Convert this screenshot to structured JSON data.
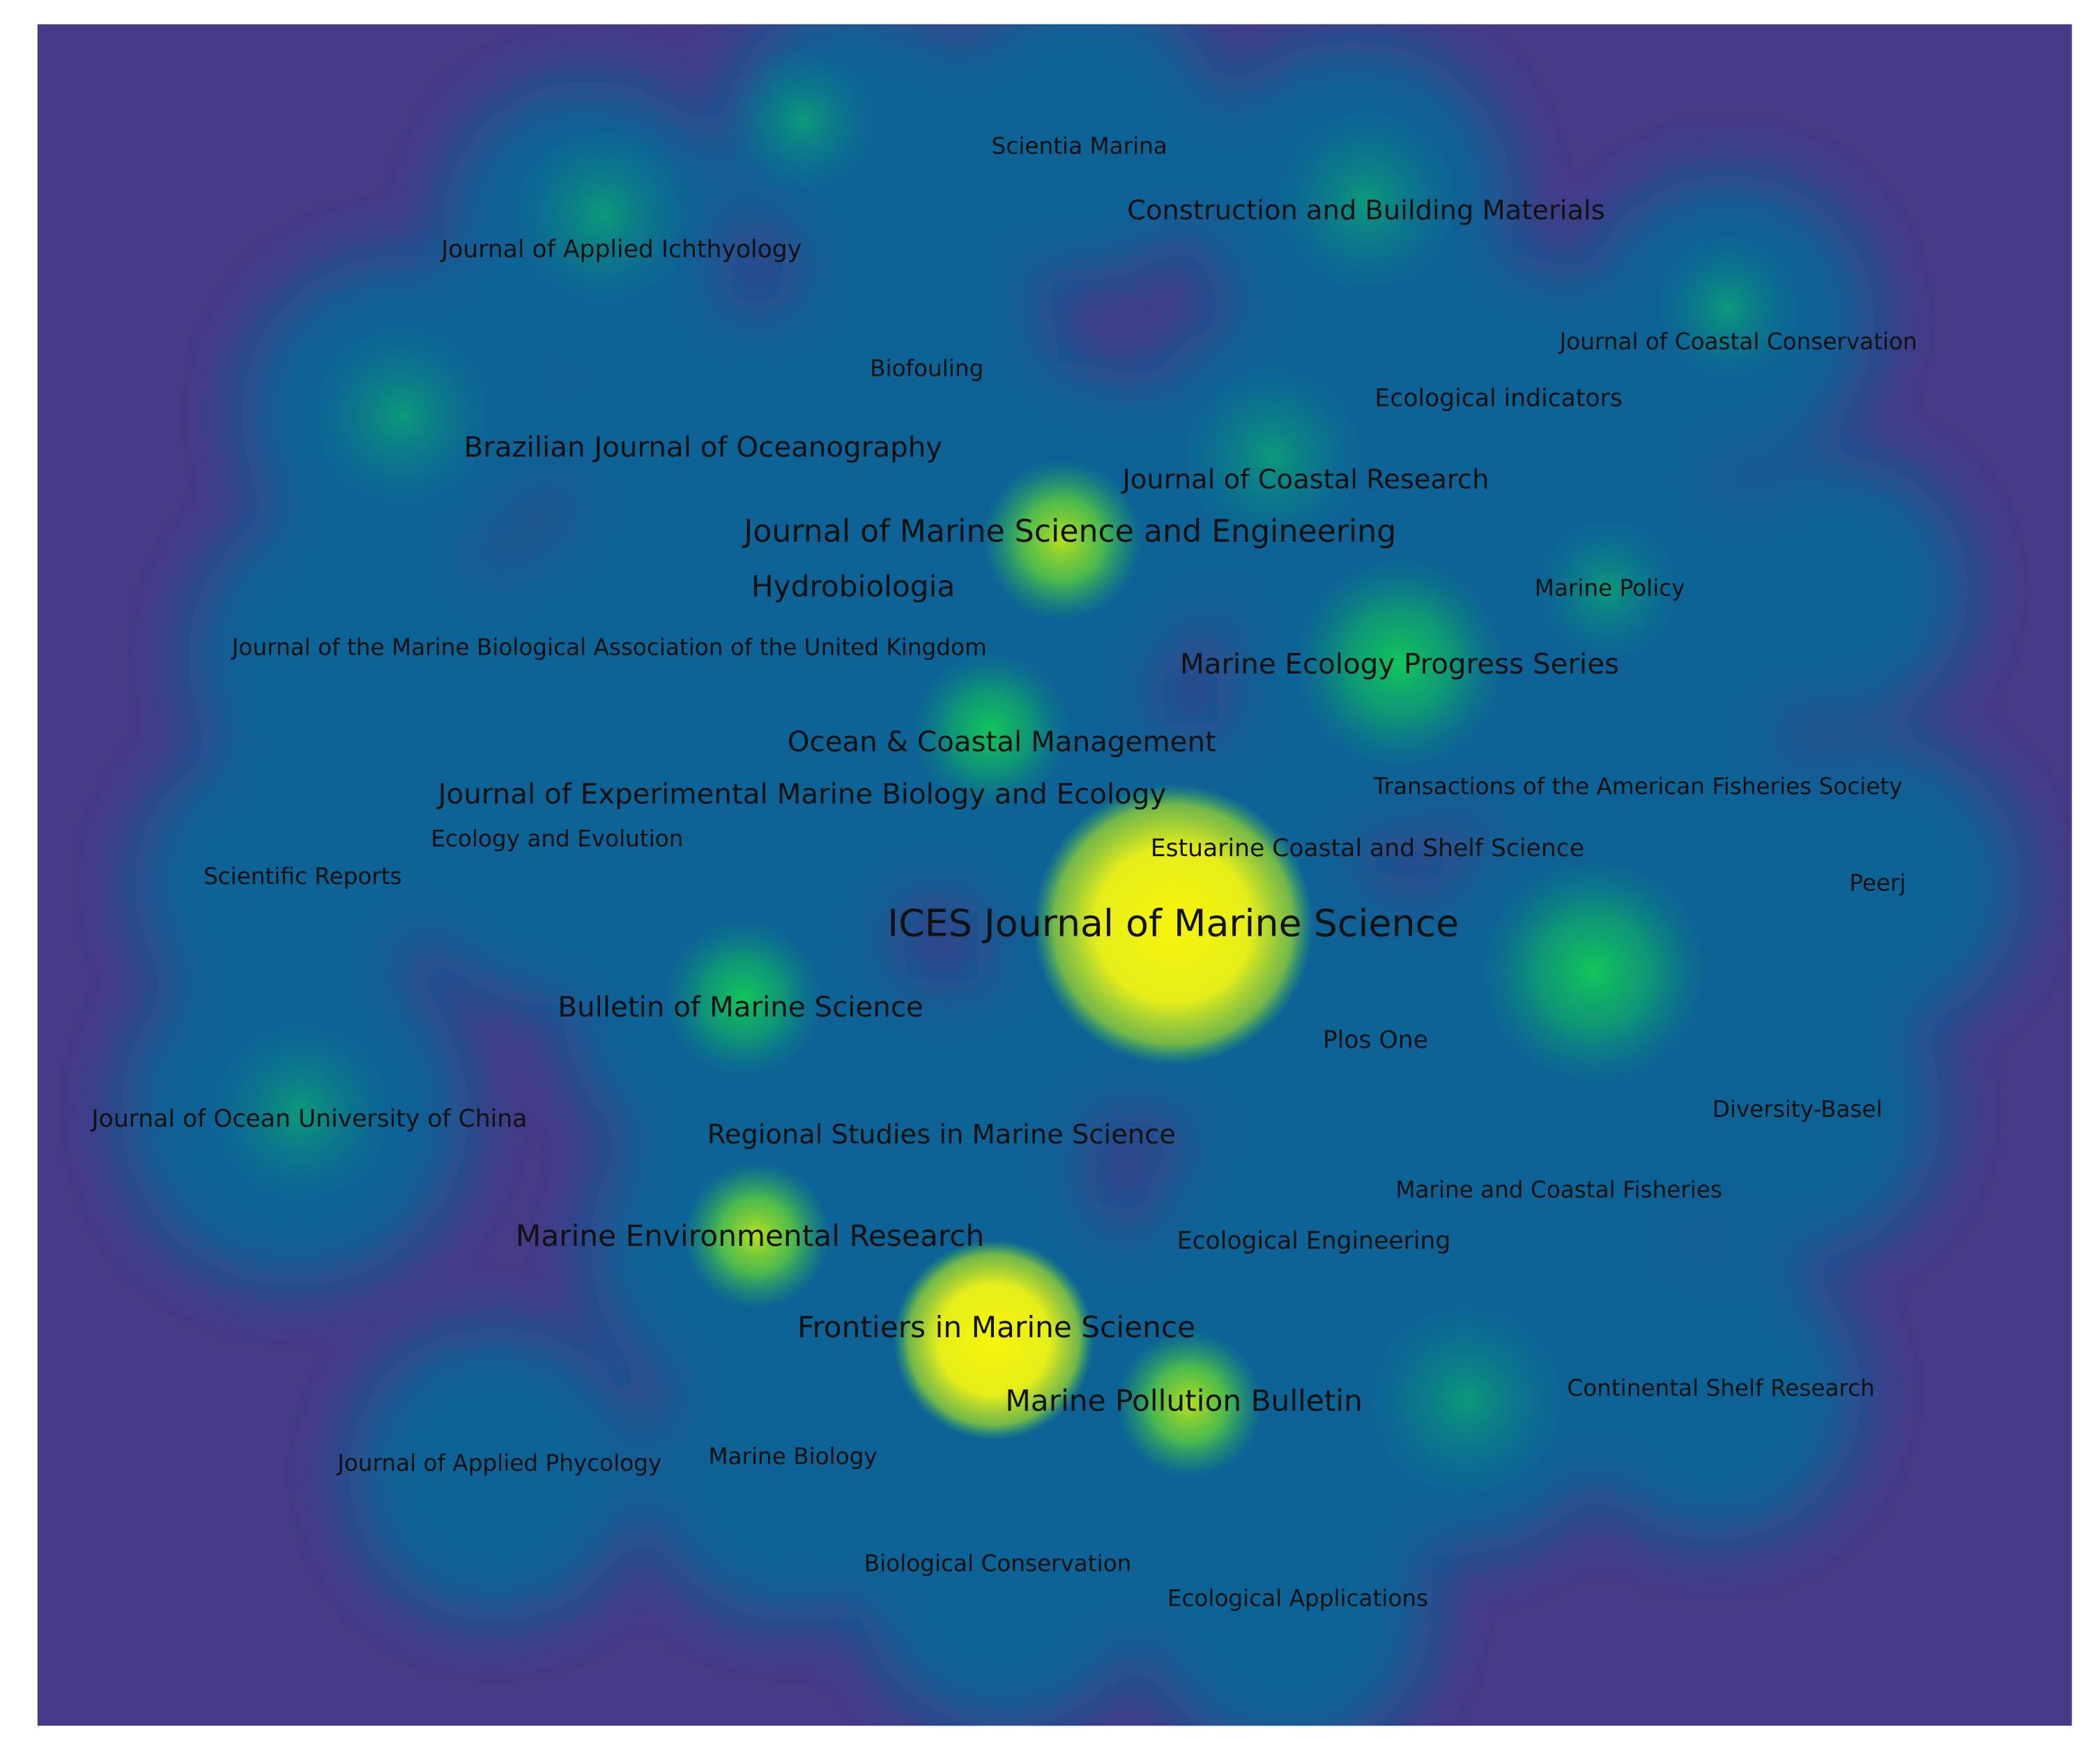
{
  "labels": [
    "Scientia Marina",
    "Construction and Building Materials",
    "Journal of Applied Ichthyology",
    "Journal of Coastal Conservation",
    "Biofouling",
    "Ecological indicators",
    "Brazilian Journal of Oceanography",
    "Journal of Coastal Research",
    "Journal of Marine Science and Engineering",
    "Hydrobiologia",
    "Marine Policy",
    "Journal of the Marine Biological Association of the United Kingdom",
    "Marine Ecology Progress Series",
    "Ocean & Coastal Management",
    "Journal of Experimental Marine Biology and Ecology",
    "Transactions of the American Fisheries Society",
    "Ecology and Evolution",
    "Estuarine Coastal and Shelf Science",
    "Scientific Reports",
    "Peerj",
    "ICES Journal of Marine Science",
    "Bulletin of Marine Science",
    "Plos One",
    "Journal of Ocean University of China",
    "Diversity-Basel",
    "Regional Studies in Marine Science",
    "Marine and Coastal Fisheries",
    "Marine Environmental Research",
    "Ecological Engineering",
    "Frontiers in Marine Science",
    "Marine Pollution Bulletin",
    "Continental Shelf Research",
    "Journal of Applied Phycology",
    "Marine Biology",
    "Biological Conservation",
    "Ecological Applications"
  ]
}
